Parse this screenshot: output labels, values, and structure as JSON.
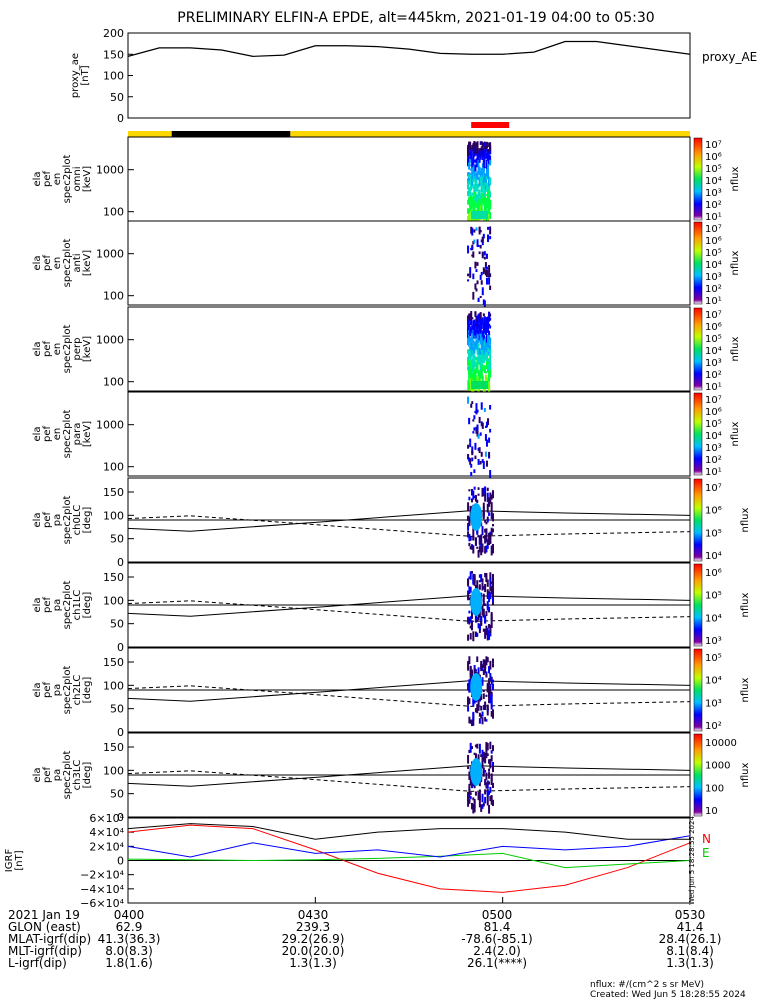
{
  "title": "PRELIMINARY ELFIN-A EPDE, alt=445km, 2021-01-19 04:00 to 05:30",
  "chart_data": [
    {
      "type": "line",
      "id": "proxy_ae",
      "ylabel": [
        "proxy_ae",
        "[nT]"
      ],
      "legend": "proxy_AE",
      "yticks": [
        "200",
        "150",
        "100",
        "50",
        "0"
      ],
      "ylim": [
        0,
        200
      ],
      "x_minutes": [
        0,
        5,
        10,
        15,
        20,
        25,
        30,
        35,
        40,
        45,
        50,
        55,
        60,
        65,
        70,
        75,
        80,
        85,
        90
      ],
      "values": [
        145,
        165,
        165,
        160,
        145,
        148,
        170,
        170,
        168,
        162,
        152,
        150,
        150,
        155,
        180,
        180,
        170,
        160,
        150
      ]
    },
    {
      "type": "bar",
      "id": "orbit_bar",
      "segments_minutes": [
        {
          "start": 0,
          "end": 7,
          "color": "#ffd700"
        },
        {
          "start": 7,
          "end": 26,
          "color": "#000000"
        },
        {
          "start": 26,
          "end": 90,
          "color": "#ffd700"
        }
      ],
      "science_zone_minutes": {
        "start": 54,
        "end": 58,
        "color": "#ff0000"
      }
    },
    {
      "type": "heatmap",
      "id": "spec_omni",
      "ylabel": [
        "ela",
        "pef",
        "en",
        "spec2plot",
        "omni",
        "[keV]"
      ],
      "yticks": [
        "1000",
        "100"
      ],
      "colorbar": [
        "10⁷",
        "10⁶",
        "10⁵",
        "10⁴",
        "10³",
        "10²",
        "10¹"
      ],
      "colorbar_title": "nflux"
    },
    {
      "type": "heatmap",
      "id": "spec_anti",
      "ylabel": [
        "ela",
        "pef",
        "en",
        "spec2plot",
        "anti",
        "[keV]"
      ],
      "yticks": [
        "1000",
        "100"
      ],
      "colorbar": [
        "10⁷",
        "10⁶",
        "10⁵",
        "10⁴",
        "10³",
        "10²",
        "10¹"
      ],
      "colorbar_title": "nflux"
    },
    {
      "type": "heatmap",
      "id": "spec_perp",
      "ylabel": [
        "ela",
        "pef",
        "en",
        "spec2plot",
        "perp",
        "[keV]"
      ],
      "yticks": [
        "1000",
        "100"
      ],
      "colorbar": [
        "10⁷",
        "10⁶",
        "10⁵",
        "10⁴",
        "10³",
        "10²",
        "10¹"
      ],
      "colorbar_title": "nflux"
    },
    {
      "type": "heatmap",
      "id": "spec_para",
      "ylabel": [
        "ela",
        "pef",
        "en",
        "spec2plot",
        "para",
        "[keV]"
      ],
      "yticks": [
        "1000",
        "100"
      ],
      "colorbar": [
        "10⁷",
        "10⁶",
        "10⁵",
        "10⁴",
        "10³",
        "10²",
        "10¹"
      ],
      "colorbar_title": "nflux"
    },
    {
      "type": "heatmap",
      "id": "pa_ch0",
      "ylabel": [
        "ela",
        "pef",
        "pa",
        "spec2plot",
        "ch0LC",
        "[deg]"
      ],
      "yticks": [
        "150",
        "100",
        "50",
        "0"
      ],
      "colorbar": [
        "10⁷",
        "10⁶",
        "10⁵",
        "10⁴"
      ],
      "colorbar_title": "nflux"
    },
    {
      "type": "heatmap",
      "id": "pa_ch1",
      "ylabel": [
        "ela",
        "pef",
        "pa",
        "spec2plot",
        "ch1LC",
        "[deg]"
      ],
      "yticks": [
        "150",
        "100",
        "50",
        "0"
      ],
      "colorbar": [
        "10⁶",
        "10⁵",
        "10⁴",
        "10³"
      ],
      "colorbar_title": "nflux"
    },
    {
      "type": "heatmap",
      "id": "pa_ch2",
      "ylabel": [
        "ela",
        "pef",
        "pa",
        "spec2plot",
        "ch2LC",
        "[deg]"
      ],
      "yticks": [
        "150",
        "100",
        "50",
        "0"
      ],
      "colorbar": [
        "10⁵",
        "10⁴",
        "10³",
        "10²"
      ],
      "colorbar_title": "nflux"
    },
    {
      "type": "heatmap",
      "id": "pa_ch3",
      "ylabel": [
        "ela",
        "pef",
        "pa",
        "spec2plot",
        "ch3LC",
        "[deg]"
      ],
      "yticks": [
        "150",
        "100",
        "50",
        "0"
      ],
      "colorbar": [
        "10000",
        "1000",
        "100",
        "10"
      ],
      "colorbar_title": "nflux"
    },
    {
      "type": "line",
      "id": "igrf",
      "ylabel": [
        "IGRF",
        "[nT]"
      ],
      "yticks": [
        "6×10⁴",
        "4×10⁴",
        "2×10⁴",
        "0",
        "−2×10⁴",
        "−4×10⁴",
        "−6×10⁴"
      ],
      "ylim": [
        -60000,
        60000
      ],
      "legend": [
        "N",
        "E"
      ],
      "side_label": "Wed Jun  5 18:28:55 2024",
      "x_minutes": [
        0,
        10,
        20,
        30,
        40,
        50,
        60,
        70,
        80,
        90
      ],
      "series": [
        {
          "name": "N",
          "color": "#ff0000",
          "values": [
            40000,
            50000,
            45000,
            15000,
            -18000,
            -40000,
            -45000,
            -35000,
            -10000,
            25000
          ]
        },
        {
          "name": "E",
          "color": "#00cc00",
          "values": [
            2000,
            1000,
            0,
            1000,
            3000,
            6000,
            10000,
            -10000,
            -5000,
            0
          ]
        },
        {
          "color": "#0000ff",
          "values": [
            20000,
            5000,
            25000,
            10000,
            15000,
            5000,
            20000,
            15000,
            20000,
            35000
          ]
        },
        {
          "color": "#000000",
          "values": [
            45000,
            52000,
            48000,
            30000,
            40000,
            45000,
            45000,
            40000,
            30000,
            30000
          ]
        }
      ]
    }
  ],
  "axis_footer": {
    "rows": [
      [
        "2021 Jan 19",
        "0400",
        "0430",
        "0500",
        "0530"
      ],
      [
        "GLON (east)",
        "62.9",
        "239.3",
        "81.4",
        "41.4"
      ],
      [
        "MLAT-igrf(dip)",
        "41.3(36.3)",
        "29.2(26.9)",
        "-78.6(-85.1)",
        "28.4(26.1)"
      ],
      [
        "MLT-igrf(dip)",
        "8.0(8.3)",
        "20.0(20.0)",
        "2.4(2.0)",
        "8.1(8.4)"
      ],
      [
        "L-igrf(dip)",
        "1.8(1.6)",
        "1.3(1.3)",
        "26.1(****)",
        "1.3(1.3)"
      ]
    ]
  },
  "notes": {
    "units": "nflux: #/(cm^2 s sr MeV)",
    "created": "Created: Wed Jun  5 18:28:55 2024"
  }
}
